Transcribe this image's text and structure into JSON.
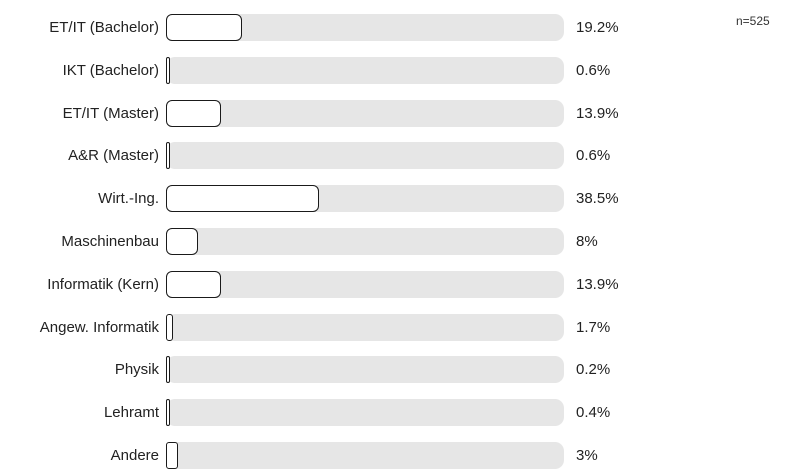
{
  "sample_size": "n=525",
  "chart_data": {
    "type": "bar",
    "orientation": "horizontal",
    "categories": [
      "ET/IT (Bachelor)",
      "IKT (Bachelor)",
      "ET/IT (Master)",
      "A&R (Master)",
      "Wirt.-Ing.",
      "Maschinenbau",
      "Informatik (Kern)",
      "Angew. Informatik",
      "Physik",
      "Lehramt",
      "Andere"
    ],
    "values": [
      19.2,
      0.6,
      13.9,
      0.6,
      38.5,
      8,
      13.9,
      1.7,
      0.2,
      0.4,
      3
    ],
    "value_labels": [
      "19.2%",
      "0.6%",
      "13.9%",
      "0.6%",
      "38.5%",
      "8%",
      "13.9%",
      "1.7%",
      "0.2%",
      "0.4%",
      "3%"
    ],
    "title": "",
    "xlabel": "",
    "ylabel": "",
    "xlim": [
      0,
      100
    ],
    "grid": false,
    "colors": {
      "track": "#e6e6e6",
      "fill": "#ffffff",
      "outline": "#1a1a1a"
    }
  }
}
